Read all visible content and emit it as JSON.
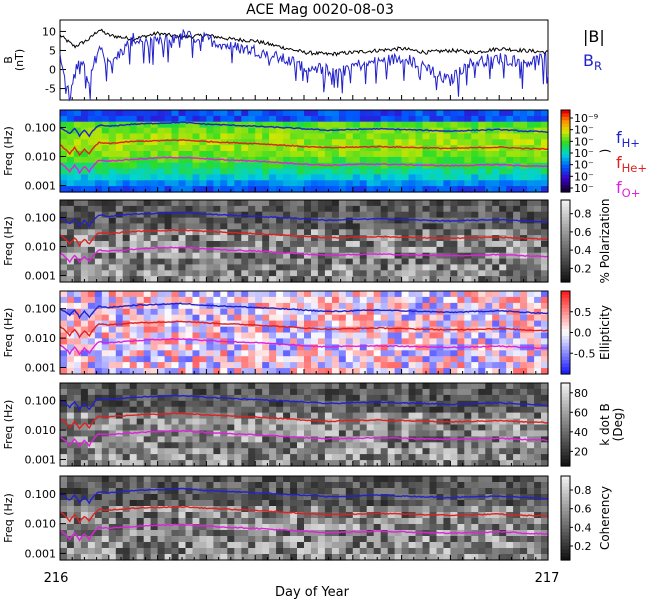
{
  "title": "ACE Mag 0020-08-03",
  "xlabel": "Day of Year",
  "x_ticks": [
    "216",
    "217"
  ],
  "chart_data": [
    {
      "type": "line",
      "ylabel": "B\n(nT)",
      "ylim": [
        -8,
        13
      ],
      "yticks": [
        "10",
        "5",
        "0",
        "-5"
      ],
      "ytick_values": [
        10,
        5,
        0,
        -5
      ],
      "xlim": [
        216,
        217
      ],
      "legend": [
        {
          "label": "|B|",
          "color": "#000000"
        },
        {
          "label": "B",
          "sub": "R",
          "color": "#2222cc"
        }
      ],
      "series": [
        {
          "name": "|B|",
          "color": "#000000",
          "x": [
            216.0,
            216.03,
            216.06,
            216.08,
            216.1,
            216.15,
            216.2,
            216.25,
            216.3,
            216.35,
            216.4,
            216.45,
            216.5,
            216.55,
            216.6,
            216.65,
            216.7,
            216.75,
            216.8,
            216.85,
            216.9,
            216.95,
            217.0
          ],
          "values": [
            9,
            6,
            8,
            10.5,
            9,
            8,
            9.5,
            8.5,
            9,
            8,
            7.5,
            6,
            4.5,
            4,
            4.5,
            5,
            5.5,
            4.5,
            5,
            4.5,
            5.5,
            5,
            4.5
          ]
        },
        {
          "name": "B",
          "color": "#2222cc",
          "x": [
            216.0,
            216.02,
            216.04,
            216.06,
            216.08,
            216.1,
            216.15,
            216.2,
            216.25,
            216.3,
            216.35,
            216.4,
            216.45,
            216.5,
            216.55,
            216.6,
            216.65,
            216.7,
            216.75,
            216.78,
            216.8,
            216.82,
            216.85,
            216.9,
            216.95,
            217.0
          ],
          "values": [
            3,
            -7,
            4,
            -3,
            6,
            1,
            8,
            7,
            9,
            8,
            6,
            5,
            3,
            1,
            0,
            1,
            2,
            3,
            1,
            -2,
            -3,
            0,
            2,
            3,
            2,
            3
          ]
        }
      ]
    },
    {
      "type": "heatmap",
      "ylabel": "Freq (Hz)",
      "ylim": [
        0.0006,
        0.4
      ],
      "yscale": "log",
      "yticks": [
        "0.100",
        "0.010",
        "0.001"
      ],
      "ytick_values": [
        0.1,
        0.01,
        0.001
      ],
      "colormap": "rainbow",
      "colorbar_label": ")",
      "colorbar_ticks": [
        "10⁻⁹",
        "10⁻",
        "10⁻",
        "10⁻",
        "10⁻",
        "10⁻",
        "10⁻"
      ],
      "legend": [
        {
          "label": "f",
          "sub": "H+",
          "color": "#2222cc"
        },
        {
          "label": "f",
          "sub": "He+",
          "color": "#dd2222"
        },
        {
          "label": "f",
          "sub": "O+",
          "color": "#dd22dd"
        }
      ]
    },
    {
      "type": "heatmap",
      "ylabel": "Freq (Hz)",
      "ylim": [
        0.0006,
        0.4
      ],
      "yscale": "log",
      "yticks": [
        "0.100",
        "0.010",
        "0.001"
      ],
      "ytick_values": [
        0.1,
        0.01,
        0.001
      ],
      "colormap": "gray",
      "colorbar_label": "% Polarization",
      "colorbar_ticks": [
        "0.8",
        "0.6",
        "0.4",
        "0.2"
      ],
      "colorbar_range": [
        0.05,
        0.95
      ]
    },
    {
      "type": "heatmap",
      "ylabel": "Freq (Hz)",
      "ylim": [
        0.0006,
        0.4
      ],
      "yscale": "log",
      "yticks": [
        "0.100",
        "0.010",
        "0.001"
      ],
      "ytick_values": [
        0.1,
        0.01,
        0.001
      ],
      "colormap": "blue-white-red",
      "colorbar_label": "Ellipticity",
      "colorbar_ticks": [
        "0.5",
        "0.0",
        "-0.5"
      ],
      "colorbar_range": [
        -1,
        1
      ]
    },
    {
      "type": "heatmap",
      "ylabel": "Freq (Hz)",
      "ylim": [
        0.0006,
        0.4
      ],
      "yscale": "log",
      "yticks": [
        "0.100",
        "0.010",
        "0.001"
      ],
      "ytick_values": [
        0.1,
        0.01,
        0.001
      ],
      "colormap": "gray",
      "colorbar_label": "k dot B\n(Deg)",
      "colorbar_ticks": [
        "80",
        "60",
        "40",
        "20"
      ],
      "colorbar_range": [
        5,
        90
      ]
    },
    {
      "type": "heatmap",
      "ylabel": "Freq (Hz)",
      "ylim": [
        0.0006,
        0.4
      ],
      "yscale": "log",
      "yticks": [
        "0.100",
        "0.010",
        "0.001"
      ],
      "ytick_values": [
        0.1,
        0.01,
        0.001
      ],
      "colormap": "gray",
      "colorbar_label": "Coherency",
      "colorbar_ticks": [
        "0.8",
        "0.6",
        "0.4",
        "0.2"
      ],
      "colorbar_range": [
        0.05,
        0.95
      ]
    }
  ],
  "gyro_lines": {
    "x": [
      216.0,
      216.02,
      216.03,
      216.04,
      216.05,
      216.06,
      216.08,
      216.1,
      216.15,
      216.2,
      216.25,
      216.3,
      216.35,
      216.4,
      216.45,
      216.5,
      216.55,
      216.6,
      216.65,
      216.7,
      216.75,
      216.8,
      216.85,
      216.9,
      216.95,
      217.0
    ],
    "H": [
      0.1,
      0.06,
      0.09,
      0.05,
      0.08,
      0.05,
      0.12,
      0.11,
      0.13,
      0.14,
      0.15,
      0.13,
      0.12,
      0.11,
      0.1,
      0.09,
      0.08,
      0.085,
      0.09,
      0.085,
      0.08,
      0.075,
      0.08,
      0.085,
      0.075,
      0.07
    ],
    "He": [
      0.025,
      0.012,
      0.02,
      0.011,
      0.018,
      0.012,
      0.03,
      0.028,
      0.033,
      0.035,
      0.037,
      0.033,
      0.03,
      0.028,
      0.025,
      0.022,
      0.02,
      0.021,
      0.022,
      0.021,
      0.02,
      0.019,
      0.02,
      0.021,
      0.019,
      0.018
    ],
    "O": [
      0.006,
      0.003,
      0.005,
      0.0028,
      0.0045,
      0.003,
      0.0075,
      0.007,
      0.008,
      0.009,
      0.0093,
      0.0083,
      0.0075,
      0.007,
      0.0062,
      0.0055,
      0.005,
      0.0053,
      0.0055,
      0.0053,
      0.005,
      0.0048,
      0.005,
      0.0053,
      0.0048,
      0.0045
    ]
  },
  "colors": {
    "H": "#2222cc",
    "He": "#dd2222",
    "O": "#dd22dd",
    "B": "#2222cc",
    "Bmag": "#000000"
  }
}
